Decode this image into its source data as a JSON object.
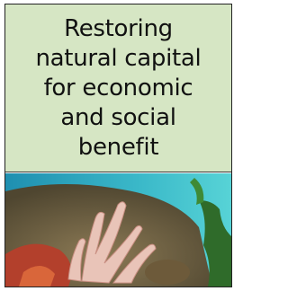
{
  "cover": {
    "title_lines": [
      "Restoring",
      "natural capital",
      "for economic",
      "and social",
      "benefit"
    ]
  }
}
